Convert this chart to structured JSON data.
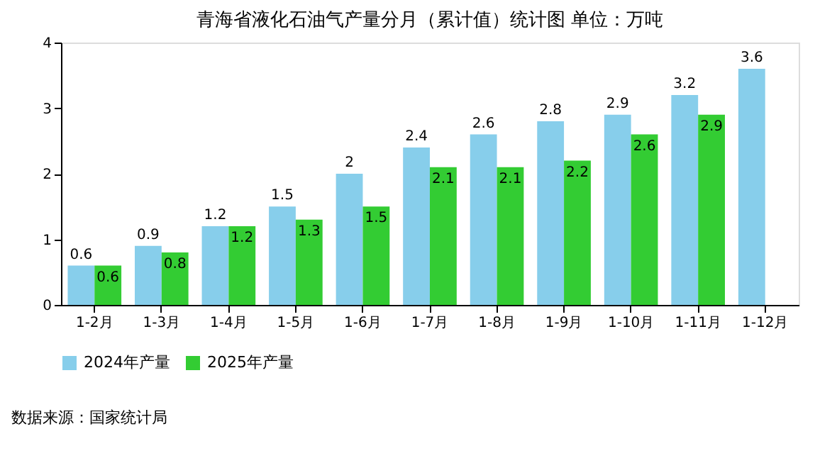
{
  "chart_data": {
    "type": "bar",
    "title": "青海省液化石油气产量分月（累计值）统计图 单位：万吨",
    "categories": [
      "1-2月",
      "1-3月",
      "1-4月",
      "1-5月",
      "1-6月",
      "1-7月",
      "1-8月",
      "1-9月",
      "1-10月",
      "1-11月",
      "1-12月"
    ],
    "series": [
      {
        "name": "2024年产量",
        "color": "#87ceeb",
        "values": [
          0.6,
          0.9,
          1.2,
          1.5,
          2,
          2.4,
          2.6,
          2.8,
          2.9,
          3.2,
          3.6
        ]
      },
      {
        "name": "2025年产量",
        "color": "#33cc33",
        "values": [
          0.6,
          0.8,
          1.2,
          1.3,
          1.5,
          2.1,
          2.1,
          2.2,
          2.6,
          2.9,
          null
        ]
      }
    ],
    "ylim": [
      0,
      4
    ],
    "yticks": [
      0,
      1,
      2,
      3,
      4
    ],
    "grid": false,
    "legend": "bottom",
    "data_labels": true,
    "annotations": [
      "数据来源：国家统计局"
    ]
  }
}
